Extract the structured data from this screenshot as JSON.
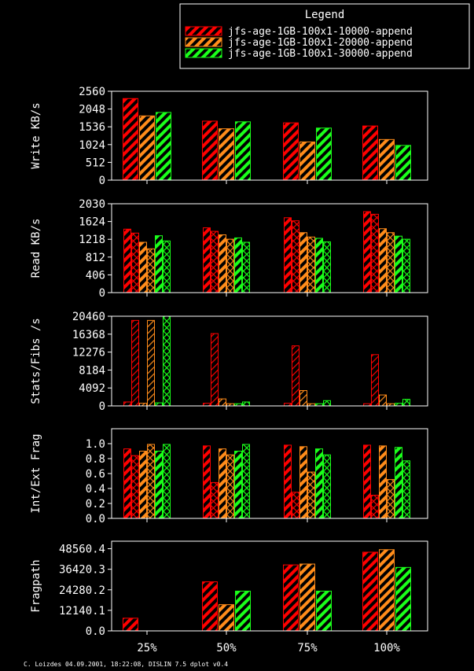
{
  "legend": {
    "title": "Legend",
    "entries": [
      {
        "label": "jfs-age-1GB-100x1-10000-append",
        "color": "#ff0000"
      },
      {
        "label": "jfs-age-1GB-100x1-20000-append",
        "color": "#ff8c1a"
      },
      {
        "label": "jfs-age-1GB-100x1-30000-append",
        "color": "#1aff1a"
      }
    ]
  },
  "footer": "C. Loizdes 04.09.2001, 18:22:08, DISLIN 7.5 dplot v0.4",
  "chart_data": [
    {
      "type": "bar",
      "ylabel": "Write KB/s",
      "ylim": [
        0,
        2560
      ],
      "yticks": [
        "0",
        "512",
        "1024",
        "1536",
        "2048",
        "2560"
      ],
      "yticks_values": [
        0,
        512,
        1024,
        1536,
        2048,
        2560
      ],
      "categories": [
        "25%",
        "50%",
        "75%",
        "100%"
      ],
      "series": [
        {
          "name": "jfs-age-1GB-100x1-10000-append",
          "values": [
            2350,
            1700,
            1650,
            1560
          ],
          "hatch": "bars"
        },
        {
          "name": "jfs-age-1GB-100x1-20000-append",
          "values": [
            1850,
            1480,
            1100,
            1170
          ],
          "hatch": "bars"
        },
        {
          "name": "jfs-age-1GB-100x1-30000-append",
          "values": [
            1950,
            1680,
            1500,
            1000
          ],
          "hatch": "bars"
        }
      ]
    },
    {
      "type": "bar",
      "ylabel": "Read KB/s",
      "ylim": [
        0,
        2030
      ],
      "yticks": [
        "0",
        "406",
        "812",
        "1218",
        "1624",
        "2030"
      ],
      "yticks_values": [
        0,
        406,
        812,
        1218,
        1624,
        2030
      ],
      "categories": [
        "25%",
        "50%",
        "75%",
        "100%"
      ],
      "series": [
        {
          "name": "jfs-age-1GB-100x1-10000-append",
          "values": [
            1450,
            1480,
            1710,
            1850
          ],
          "hatch": "bars"
        },
        {
          "name": "jfs-age-1GB-100x1-10000-append",
          "values": [
            1360,
            1400,
            1640,
            1790
          ],
          "hatch": "cross"
        },
        {
          "name": "jfs-age-1GB-100x1-20000-append",
          "values": [
            1150,
            1320,
            1370,
            1460
          ],
          "hatch": "bars"
        },
        {
          "name": "jfs-age-1GB-100x1-20000-append",
          "values": [
            1000,
            1220,
            1270,
            1370
          ],
          "hatch": "cross"
        },
        {
          "name": "jfs-age-1GB-100x1-30000-append",
          "values": [
            1300,
            1250,
            1240,
            1290
          ],
          "hatch": "bars"
        },
        {
          "name": "jfs-age-1GB-100x1-30000-append",
          "values": [
            1180,
            1150,
            1160,
            1220
          ],
          "hatch": "cross"
        }
      ]
    },
    {
      "type": "bar",
      "ylabel": "Stats/Fibs /s",
      "ylim": [
        0,
        20460
      ],
      "yticks": [
        "0",
        "4092",
        "8184",
        "12276",
        "16368",
        "20460"
      ],
      "yticks_values": [
        0,
        4092,
        8184,
        12276,
        16368,
        20460
      ],
      "categories": [
        "25%",
        "50%",
        "75%",
        "100%"
      ],
      "series": [
        {
          "name": "jfs-age-1GB-100x1-10000-append",
          "values": [
            900,
            600,
            600,
            500
          ],
          "hatch": "thin"
        },
        {
          "name": "jfs-age-1GB-100x1-10000-append",
          "values": [
            19500,
            16500,
            13700,
            11700
          ],
          "hatch": "thin"
        },
        {
          "name": "jfs-age-1GB-100x1-20000-append",
          "values": [
            600,
            1600,
            3500,
            2500
          ],
          "hatch": "thin"
        },
        {
          "name": "jfs-age-1GB-100x1-20000-append",
          "values": [
            19500,
            500,
            500,
            500
          ],
          "hatch": "thin"
        },
        {
          "name": "jfs-age-1GB-100x1-30000-append",
          "values": [
            700,
            500,
            500,
            600
          ],
          "hatch": "thin"
        },
        {
          "name": "jfs-age-1GB-100x1-30000-append",
          "values": [
            20460,
            900,
            1200,
            1500
          ],
          "hatch": "cross"
        }
      ]
    },
    {
      "type": "bar",
      "ylabel": "Int/Ext Frag",
      "ylim": [
        0,
        1.2
      ],
      "yticks": [
        "0.0",
        "0.2",
        "0.4",
        "0.6",
        "0.8",
        "1.0"
      ],
      "yticks_values": [
        0,
        0.2,
        0.4,
        0.6,
        0.8,
        1.0
      ],
      "categories": [
        "25%",
        "50%",
        "75%",
        "100%"
      ],
      "series": [
        {
          "name": "jfs-age-1GB-100x1-10000-append",
          "values": [
            0.93,
            0.97,
            0.98,
            0.98
          ],
          "hatch": "bars"
        },
        {
          "name": "jfs-age-1GB-100x1-10000-append",
          "values": [
            0.84,
            0.48,
            0.35,
            0.31
          ],
          "hatch": "cross"
        },
        {
          "name": "jfs-age-1GB-100x1-20000-append",
          "values": [
            0.9,
            0.93,
            0.96,
            0.97
          ],
          "hatch": "bars"
        },
        {
          "name": "jfs-age-1GB-100x1-20000-append",
          "values": [
            0.99,
            0.85,
            0.62,
            0.52
          ],
          "hatch": "cross"
        },
        {
          "name": "jfs-age-1GB-100x1-30000-append",
          "values": [
            0.9,
            0.9,
            0.93,
            0.95
          ],
          "hatch": "bars"
        },
        {
          "name": "jfs-age-1GB-100x1-30000-append",
          "values": [
            0.99,
            0.99,
            0.85,
            0.77
          ],
          "hatch": "cross"
        }
      ]
    },
    {
      "type": "bar",
      "ylabel": "Fragpath",
      "ylim": [
        0,
        53000
      ],
      "yticks": [
        "0.0",
        "12140.1",
        "24280.2",
        "36420.3",
        "48560.4"
      ],
      "yticks_values": [
        0,
        12140.1,
        24280.2,
        36420.3,
        48560.4
      ],
      "categories": [
        "25%",
        "50%",
        "75%",
        "100%"
      ],
      "series": [
        {
          "name": "jfs-age-1GB-100x1-10000-append",
          "values": [
            7500,
            29000,
            39000,
            46500
          ],
          "hatch": "bars"
        },
        {
          "name": "jfs-age-1GB-100x1-20000-append",
          "values": [
            0,
            15500,
            39500,
            48000
          ],
          "hatch": "bars"
        },
        {
          "name": "jfs-age-1GB-100x1-30000-append",
          "values": [
            0,
            23500,
            23500,
            37500
          ],
          "hatch": "bars"
        }
      ]
    }
  ]
}
